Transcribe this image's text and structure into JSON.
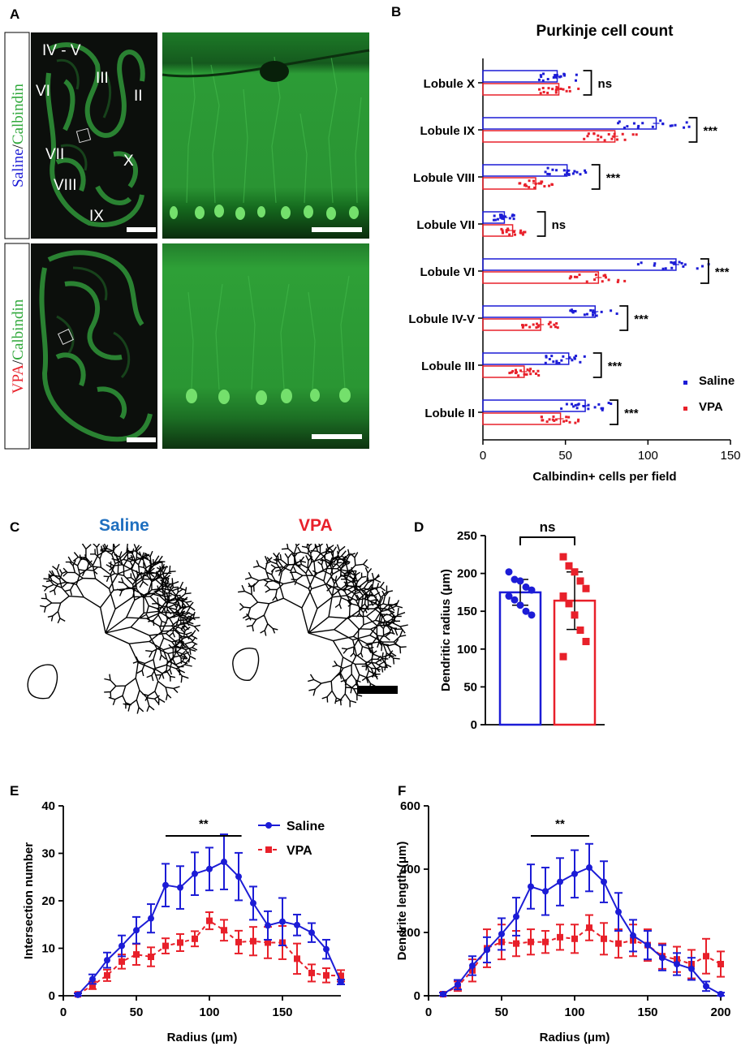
{
  "panels": {
    "A": {
      "letter": "A",
      "saline_label_1": "Saline",
      "saline_label_sep": "/",
      "saline_label_2": "Calbindin",
      "vpa_label_1": "VPA",
      "vpa_label_sep": "/",
      "vpa_label_2": "Calbindin",
      "lobule_labels": [
        "IV - V",
        "III",
        "II",
        "VI",
        "VII",
        "VIII",
        "X",
        "IX"
      ]
    },
    "C": {
      "letter": "C",
      "saline_title": "Saline",
      "vpa_title": "VPA"
    }
  },
  "colors": {
    "saline": "#1c1cd6",
    "vpa": "#e8202a",
    "fluor": "#2fa83a",
    "background_dark": "#0c0f0c"
  },
  "chart_data": [
    {
      "panel": "B",
      "type": "bar",
      "orientation": "horizontal",
      "title": "Purkinje cell count",
      "xlabel": "Calbindin+ cells per field",
      "xlim": [
        0,
        150
      ],
      "xticks": [
        0,
        50,
        100,
        150
      ],
      "categories": [
        "Lobule X",
        "Lobule IX",
        "Lobule VIII",
        "Lobule VII",
        "Lobule VI",
        "Lobule IV-V",
        "Lobule III",
        "Lobule II"
      ],
      "series": [
        {
          "name": "Saline",
          "values": [
            45,
            105,
            51,
            13,
            117,
            68,
            52,
            62
          ]
        },
        {
          "name": "VPA",
          "values": [
            46,
            80,
            32,
            18,
            70,
            35,
            25,
            47
          ]
        }
      ],
      "significance": [
        "ns",
        "***",
        "***",
        "ns",
        "***",
        "***",
        "***",
        "***"
      ],
      "legend": "bottom-right"
    },
    {
      "panel": "D",
      "type": "bar",
      "ylabel": "Dendritic radius (μm)",
      "ylim": [
        0,
        250
      ],
      "yticks": [
        0,
        50,
        100,
        150,
        200,
        250
      ],
      "categories": [
        "Saline",
        "VPA"
      ],
      "values": [
        175,
        164
      ],
      "errors": [
        17,
        38
      ],
      "points": [
        [
          202,
          192,
          190,
          182,
          178,
          170,
          165,
          158,
          150,
          145
        ],
        [
          222,
          210,
          202,
          190,
          180,
          170,
          160,
          145,
          125,
          110,
          90
        ]
      ],
      "significance": "ns"
    },
    {
      "panel": "E",
      "type": "line",
      "xlabel": "Radius (μm)",
      "ylabel": "Intersection number",
      "xlim": [
        0,
        190
      ],
      "ylim": [
        0,
        40
      ],
      "xticks": [
        0,
        50,
        100,
        150
      ],
      "yticks": [
        0,
        10,
        20,
        30,
        40
      ],
      "x": [
        10,
        20,
        30,
        40,
        50,
        60,
        70,
        80,
        90,
        100,
        110,
        120,
        130,
        140,
        150,
        160,
        170,
        180,
        190
      ],
      "series": [
        {
          "name": "Saline",
          "values": [
            0.2,
            3.5,
            7.5,
            10.5,
            13.8,
            16.3,
            23.3,
            22.8,
            25.7,
            26.7,
            28.2,
            25.1,
            19.5,
            14.8,
            15.6,
            14.9,
            13.3,
            9.8,
            2.9
          ],
          "errors": [
            0.3,
            1.0,
            1.6,
            2.2,
            2.8,
            3.0,
            4.5,
            4.5,
            4.5,
            4.5,
            5.8,
            5.0,
            3.5,
            3.0,
            5.0,
            2.2,
            2.0,
            2.0,
            0.5
          ]
        },
        {
          "name": "VPA",
          "values": [
            0.3,
            2.2,
            4.3,
            7.2,
            8.7,
            8.2,
            10.5,
            11.2,
            12.0,
            15.8,
            13.8,
            11.3,
            11.5,
            11.2,
            11.2,
            7.8,
            4.8,
            4.3,
            4.2
          ],
          "errors": [
            0.3,
            0.8,
            1.2,
            1.5,
            2.2,
            2.0,
            1.6,
            1.8,
            1.6,
            1.8,
            2.2,
            2.4,
            3.0,
            3.3,
            3.5,
            3.2,
            1.8,
            1.5,
            1.2
          ]
        }
      ],
      "annotation": "**",
      "legend": "top-right"
    },
    {
      "panel": "F",
      "type": "line",
      "xlabel": "Radius (μm)",
      "ylabel": "Dendrite length (μm)",
      "xlim": [
        0,
        200
      ],
      "ylim": [
        0,
        600
      ],
      "xticks": [
        0,
        50,
        100,
        150,
        200
      ],
      "yticks": [
        0,
        200,
        400,
        600
      ],
      "x": [
        10,
        20,
        30,
        40,
        50,
        60,
        70,
        80,
        90,
        100,
        110,
        120,
        130,
        140,
        150,
        160,
        170,
        180,
        190,
        200
      ],
      "series": [
        {
          "name": "Saline",
          "values": [
            5,
            35,
            95,
            145,
            195,
            250,
            345,
            330,
            360,
            385,
            405,
            360,
            265,
            190,
            160,
            120,
            100,
            85,
            30,
            5
          ],
          "errors": [
            5,
            15,
            30,
            40,
            50,
            60,
            70,
            75,
            75,
            75,
            75,
            65,
            60,
            50,
            45,
            40,
            35,
            35,
            15,
            5
          ]
        },
        {
          "name": "VPA",
          "values": [
            5,
            30,
            80,
            150,
            170,
            165,
            170,
            170,
            185,
            180,
            215,
            180,
            165,
            175,
            160,
            125,
            115,
            100,
            125,
            100
          ],
          "errors": [
            5,
            15,
            35,
            60,
            55,
            40,
            40,
            35,
            40,
            45,
            40,
            50,
            45,
            50,
            50,
            40,
            40,
            45,
            55,
            40
          ]
        }
      ],
      "annotation": "**"
    }
  ]
}
